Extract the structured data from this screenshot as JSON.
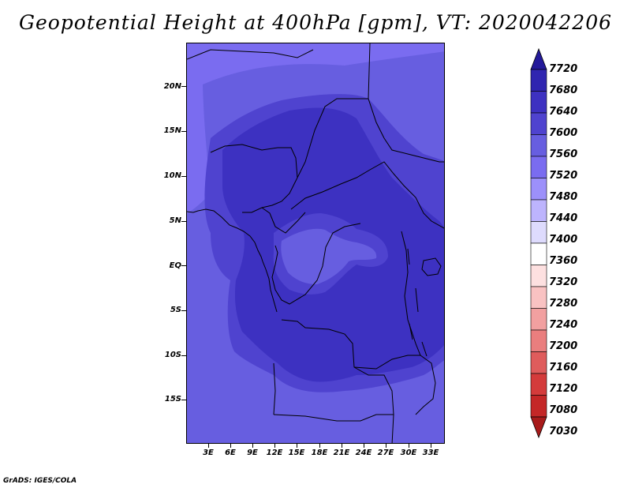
{
  "title": "Geopotential Height at 400hPa [gpm], VT: 2020042206",
  "footer": "GrADS: IGES/COLA",
  "map": {
    "region": "Central Africa",
    "lat_labels": [
      "20N",
      "15N",
      "10N",
      "5N",
      "EQ",
      "5S",
      "10S",
      "15S"
    ],
    "lat_values": [
      20,
      15,
      10,
      5,
      0,
      -5,
      -10,
      -15
    ],
    "lon_labels": [
      "3E",
      "6E",
      "9E",
      "12E",
      "15E",
      "18E",
      "21E",
      "24E",
      "27E",
      "30E",
      "33E"
    ],
    "lon_values": [
      3,
      6,
      9,
      12,
      15,
      18,
      21,
      24,
      27,
      30,
      33
    ],
    "lat_range": [
      -20,
      25
    ],
    "lon_range": [
      0,
      35
    ],
    "field_colors": {
      "c7520": "#7a6cf0",
      "c7560": "#675ee0",
      "c7600": "#4f43cf",
      "c7640": "#3d31c1",
      "coast": "#000000"
    }
  },
  "colorbar": {
    "levels": [
      "7720",
      "7680",
      "7640",
      "7600",
      "7560",
      "7520",
      "7480",
      "7440",
      "7400",
      "7360",
      "7320",
      "7280",
      "7240",
      "7200",
      "7160",
      "7120",
      "7080",
      "7030"
    ],
    "colors": [
      "#241a9a",
      "#2f25b0",
      "#3d31c1",
      "#4f43cf",
      "#675ee0",
      "#7a6cf0",
      "#9c90fa",
      "#bdb4fd",
      "#dedbfd",
      "#ffffff",
      "#fde0e0",
      "#f9c2c2",
      "#f2a0a0",
      "#ea7e7e",
      "#df5c5c",
      "#d43b3b",
      "#c42727",
      "#a81b1b"
    ]
  }
}
